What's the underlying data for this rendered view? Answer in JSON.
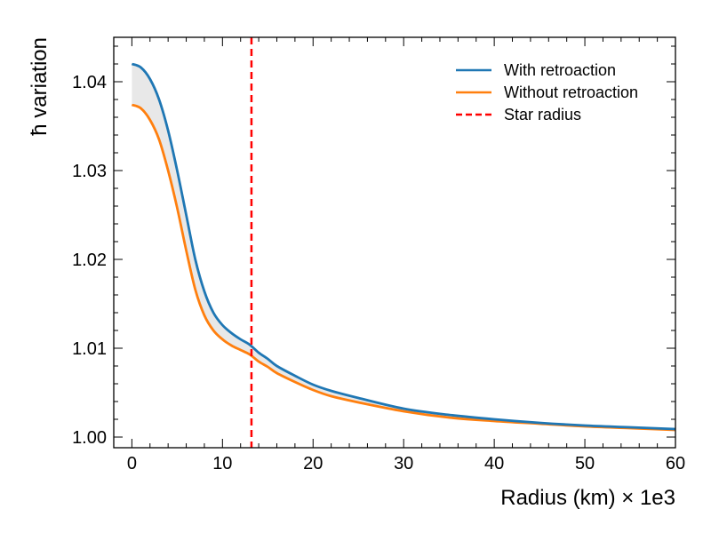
{
  "chart_data": {
    "type": "line",
    "title": "",
    "xlabel": "Radius (km) × 1e3",
    "ylabel": "ħ variation",
    "xlim": [
      -2,
      60
    ],
    "ylim": [
      0.9988,
      1.045
    ],
    "xticks": [
      0,
      10,
      20,
      30,
      40,
      50,
      60
    ],
    "xtick_labels": [
      "0",
      "10",
      "20",
      "30",
      "40",
      "50",
      "60"
    ],
    "yticks": [
      1.0,
      1.01,
      1.02,
      1.03,
      1.04
    ],
    "ytick_labels": [
      "1.00",
      "1.01",
      "1.02",
      "1.03",
      "1.04"
    ],
    "grid": false,
    "legend_position": "top-right",
    "x": [
      0,
      1,
      2,
      3,
      4,
      5,
      6,
      7,
      8,
      9,
      10,
      11,
      12,
      13,
      14,
      15,
      16,
      18,
      20,
      22,
      25,
      30,
      35,
      40,
      45,
      50,
      55,
      60
    ],
    "series": [
      {
        "name": "With retroaction",
        "color": "#1f77b4",
        "style": "solid",
        "values": [
          1.042,
          1.0416,
          1.0403,
          1.038,
          1.0345,
          1.03,
          1.025,
          1.02,
          1.0164,
          1.014,
          1.0126,
          1.0117,
          1.011,
          1.0104,
          1.0095,
          1.0088,
          1.008,
          1.0069,
          1.0059,
          1.0052,
          1.0044,
          1.0032,
          1.0025,
          1.002,
          1.0016,
          1.0013,
          1.0011,
          1.0009
        ]
      },
      {
        "name": "Without retroaction",
        "color": "#ff7f0e",
        "style": "solid",
        "values": [
          1.0374,
          1.037,
          1.0357,
          1.0335,
          1.03,
          1.0258,
          1.021,
          1.0166,
          1.0137,
          1.012,
          1.011,
          1.0103,
          1.0098,
          1.0093,
          1.0085,
          1.0079,
          1.0072,
          1.0062,
          1.0053,
          1.0046,
          1.0039,
          1.0029,
          1.0022,
          1.0018,
          1.0015,
          1.0012,
          1.001,
          1.0008
        ]
      }
    ],
    "vline": {
      "name": "Star radius",
      "x": 13.2,
      "color": "#ff0000",
      "style": "dashed"
    },
    "fill_between": {
      "color": "#e8e8e8",
      "between": [
        "With retroaction",
        "Without retroaction"
      ]
    }
  }
}
